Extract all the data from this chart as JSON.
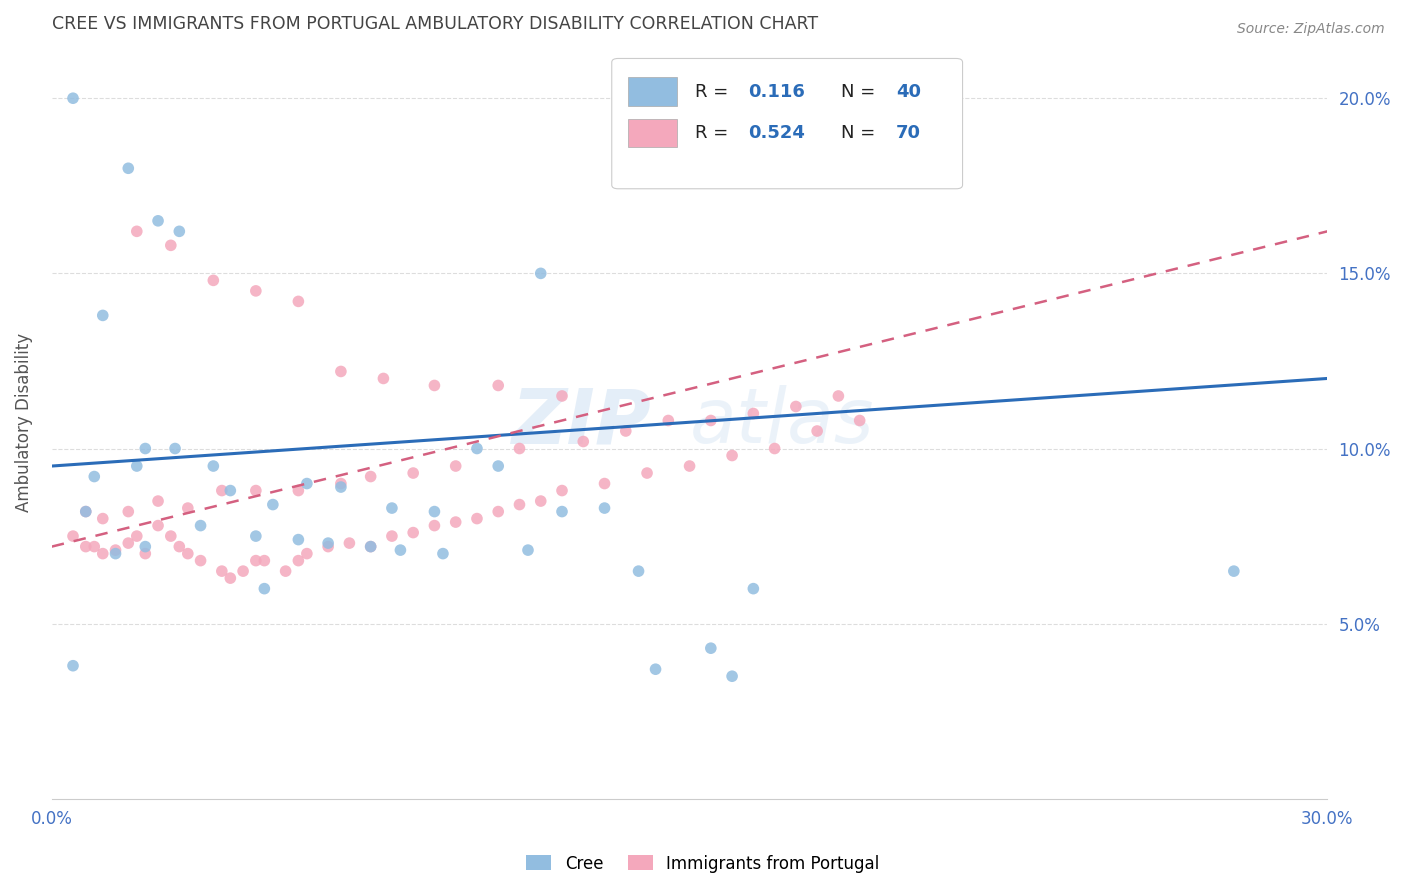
{
  "title": "CREE VS IMMIGRANTS FROM PORTUGAL AMBULATORY DISABILITY CORRELATION CHART",
  "source": "Source: ZipAtlas.com",
  "ylabel": "Ambulatory Disability",
  "xlim_min": 0.0,
  "xlim_max": 0.3,
  "ylim_min": 0.0,
  "ylim_max": 0.215,
  "cree_color": "#92bde0",
  "portugal_color": "#f4a8bc",
  "cree_line_color": "#2b6cb8",
  "portugal_line_color": "#d46080",
  "cree_R": 0.116,
  "cree_N": 40,
  "portugal_R": 0.524,
  "portugal_N": 70,
  "cree_line_x0": 0.0,
  "cree_line_y0": 0.095,
  "cree_line_x1": 0.3,
  "cree_line_y1": 0.12,
  "portugal_line_x0": 0.0,
  "portugal_line_y0": 0.072,
  "portugal_line_x1": 0.3,
  "portugal_line_y1": 0.162,
  "cree_x": [
    0.005,
    0.018,
    0.025,
    0.03,
    0.012,
    0.01,
    0.02,
    0.022,
    0.029,
    0.038,
    0.042,
    0.052,
    0.06,
    0.068,
    0.08,
    0.09,
    0.1,
    0.12,
    0.13,
    0.022,
    0.015,
    0.008,
    0.035,
    0.048,
    0.058,
    0.065,
    0.075,
    0.082,
    0.092,
    0.112,
    0.138,
    0.155,
    0.142,
    0.165,
    0.105,
    0.278,
    0.05,
    0.115,
    0.16,
    0.005
  ],
  "cree_y": [
    0.2,
    0.18,
    0.165,
    0.162,
    0.138,
    0.092,
    0.095,
    0.1,
    0.1,
    0.095,
    0.088,
    0.084,
    0.09,
    0.089,
    0.083,
    0.082,
    0.1,
    0.082,
    0.083,
    0.072,
    0.07,
    0.082,
    0.078,
    0.075,
    0.074,
    0.073,
    0.072,
    0.071,
    0.07,
    0.071,
    0.065,
    0.043,
    0.037,
    0.06,
    0.095,
    0.065,
    0.06,
    0.15,
    0.035,
    0.038
  ],
  "portugal_x": [
    0.005,
    0.008,
    0.01,
    0.012,
    0.015,
    0.018,
    0.02,
    0.022,
    0.025,
    0.028,
    0.03,
    0.032,
    0.035,
    0.04,
    0.042,
    0.045,
    0.048,
    0.05,
    0.055,
    0.058,
    0.06,
    0.065,
    0.07,
    0.075,
    0.08,
    0.085,
    0.09,
    0.095,
    0.1,
    0.105,
    0.11,
    0.115,
    0.12,
    0.13,
    0.14,
    0.15,
    0.16,
    0.17,
    0.18,
    0.19,
    0.008,
    0.012,
    0.018,
    0.025,
    0.032,
    0.04,
    0.048,
    0.058,
    0.068,
    0.075,
    0.085,
    0.095,
    0.11,
    0.125,
    0.135,
    0.145,
    0.155,
    0.165,
    0.175,
    0.185,
    0.02,
    0.028,
    0.038,
    0.048,
    0.058,
    0.068,
    0.078,
    0.09,
    0.105,
    0.12
  ],
  "portugal_y": [
    0.075,
    0.072,
    0.072,
    0.07,
    0.071,
    0.073,
    0.075,
    0.07,
    0.078,
    0.075,
    0.072,
    0.07,
    0.068,
    0.065,
    0.063,
    0.065,
    0.068,
    0.068,
    0.065,
    0.068,
    0.07,
    0.072,
    0.073,
    0.072,
    0.075,
    0.076,
    0.078,
    0.079,
    0.08,
    0.082,
    0.084,
    0.085,
    0.088,
    0.09,
    0.093,
    0.095,
    0.098,
    0.1,
    0.105,
    0.108,
    0.082,
    0.08,
    0.082,
    0.085,
    0.083,
    0.088,
    0.088,
    0.088,
    0.09,
    0.092,
    0.093,
    0.095,
    0.1,
    0.102,
    0.105,
    0.108,
    0.108,
    0.11,
    0.112,
    0.115,
    0.162,
    0.158,
    0.148,
    0.145,
    0.142,
    0.122,
    0.12,
    0.118,
    0.118,
    0.115
  ],
  "legend_label_cree": "Cree",
  "legend_label_portugal": "Immigrants from Portugal",
  "background_color": "#ffffff",
  "grid_color": "#dddddd",
  "title_color": "#444444",
  "axis_label_color": "#555555",
  "tick_color": "#4472c4",
  "source_color": "#888888"
}
